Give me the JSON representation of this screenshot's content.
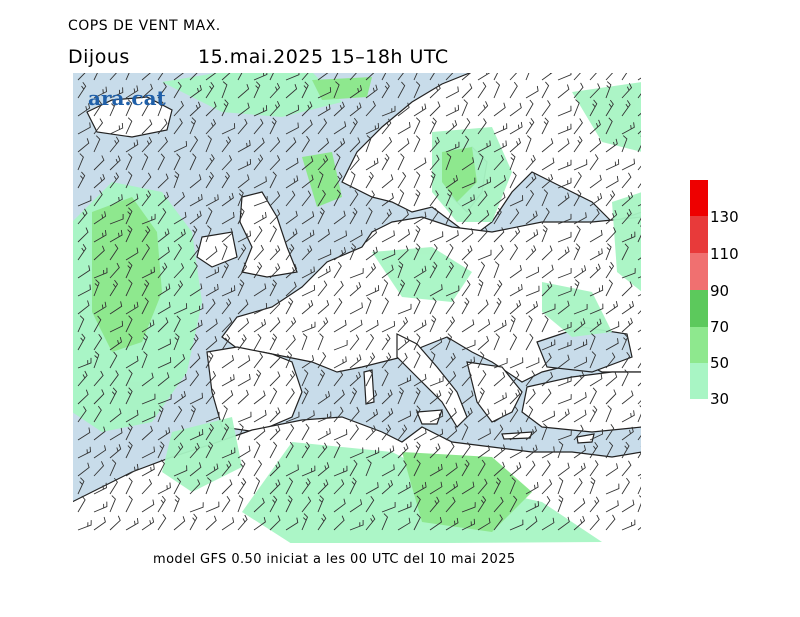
{
  "header": {
    "title": "COPS DE VENT MAX.",
    "day": "Dijous",
    "datetime": "15.mai.2025 15–18h UTC"
  },
  "logo": {
    "text": "ara.cat"
  },
  "footer": {
    "text": "model GFS 0.50 iniciat a les 00 UTC del 10 mai 2025"
  },
  "legend": {
    "labels": [
      "30",
      "50",
      "70",
      "90",
      "110",
      "130"
    ],
    "bands": [
      {
        "from": 30,
        "to": 50,
        "color": "#a8f5c4"
      },
      {
        "from": 50,
        "to": 70,
        "color": "#8ee88e"
      },
      {
        "from": 70,
        "to": 90,
        "color": "#5cc95c"
      },
      {
        "from": 90,
        "to": 110,
        "color": "#f07070"
      },
      {
        "from": 110,
        "to": 130,
        "color": "#e83a3a"
      },
      {
        "from": 130,
        "to": 150,
        "color": "#ee0000"
      }
    ]
  },
  "map": {
    "sea_color": "#c8dcea",
    "land_color": "#ffffff",
    "coast_color": "#222222",
    "barb_color": "#333333"
  }
}
